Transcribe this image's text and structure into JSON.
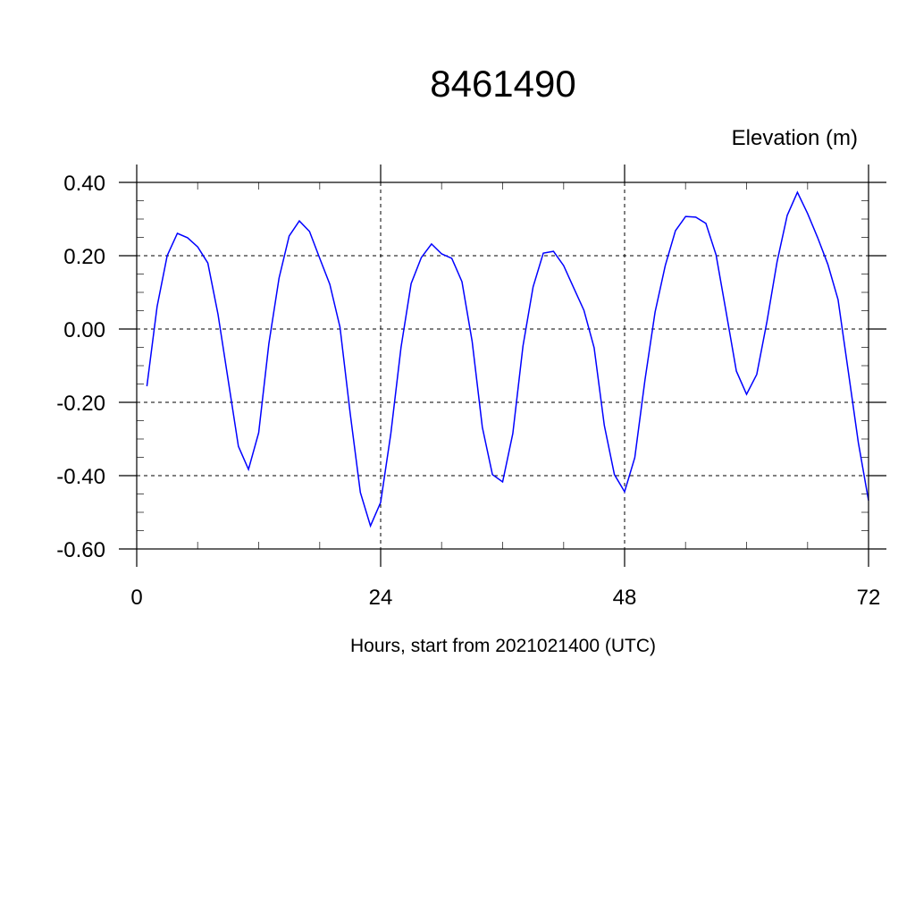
{
  "chart_data": {
    "type": "line",
    "title": "8461490",
    "ylabel": "Elevation (m)",
    "xlabel": "Hours, start from 2021021400 (UTC)",
    "xlim": [
      0,
      72
    ],
    "ylim": [
      -0.6,
      0.4
    ],
    "xticks": [
      0,
      24,
      48,
      72
    ],
    "xtick_labels": [
      "0",
      "24",
      "48",
      "72"
    ],
    "x_minor_step": 6,
    "yticks": [
      0.4,
      0.2,
      0.0,
      -0.2,
      -0.4,
      -0.6
    ],
    "ytick_labels": [
      "0.40",
      "0.20",
      "0.00",
      "-0.20",
      "-0.40",
      "-0.60"
    ],
    "y_minor_step": 0.05,
    "grid": true,
    "line_color": "#0000ff",
    "series": [
      {
        "x": [
          1,
          2,
          3,
          4,
          5,
          6,
          7,
          8,
          9,
          10,
          11,
          12,
          13,
          14,
          15,
          16,
          17,
          18,
          19,
          20,
          21,
          22,
          23,
          24,
          25,
          26,
          27,
          28,
          29,
          30,
          31,
          32,
          33,
          34,
          35,
          36,
          37,
          38,
          39,
          40,
          41,
          42,
          43,
          44,
          45,
          46,
          47,
          48,
          49,
          50,
          51,
          52,
          53,
          54,
          55,
          56,
          57,
          58,
          59,
          60,
          61,
          62,
          63,
          64,
          65,
          66,
          67,
          68,
          69,
          70,
          71,
          72
        ],
        "values": [
          -0.156,
          0.061,
          0.2,
          0.261,
          0.249,
          0.224,
          0.18,
          0.04,
          -0.14,
          -0.32,
          -0.383,
          -0.283,
          -0.04,
          0.139,
          0.254,
          0.295,
          0.266,
          0.193,
          0.122,
          0.005,
          -0.23,
          -0.446,
          -0.537,
          -0.473,
          -0.285,
          -0.05,
          0.124,
          0.195,
          0.232,
          0.205,
          0.193,
          0.129,
          -0.034,
          -0.268,
          -0.397,
          -0.417,
          -0.285,
          -0.046,
          0.115,
          0.207,
          0.212,
          0.173,
          0.112,
          0.051,
          -0.051,
          -0.263,
          -0.397,
          -0.444,
          -0.351,
          -0.139,
          0.046,
          0.173,
          0.268,
          0.307,
          0.305,
          0.288,
          0.202,
          0.044,
          -0.115,
          -0.178,
          -0.124,
          0.02,
          0.183,
          0.31,
          0.373,
          0.315,
          0.249,
          0.176,
          0.08,
          -0.115,
          -0.31,
          -0.468
        ]
      }
    ]
  }
}
